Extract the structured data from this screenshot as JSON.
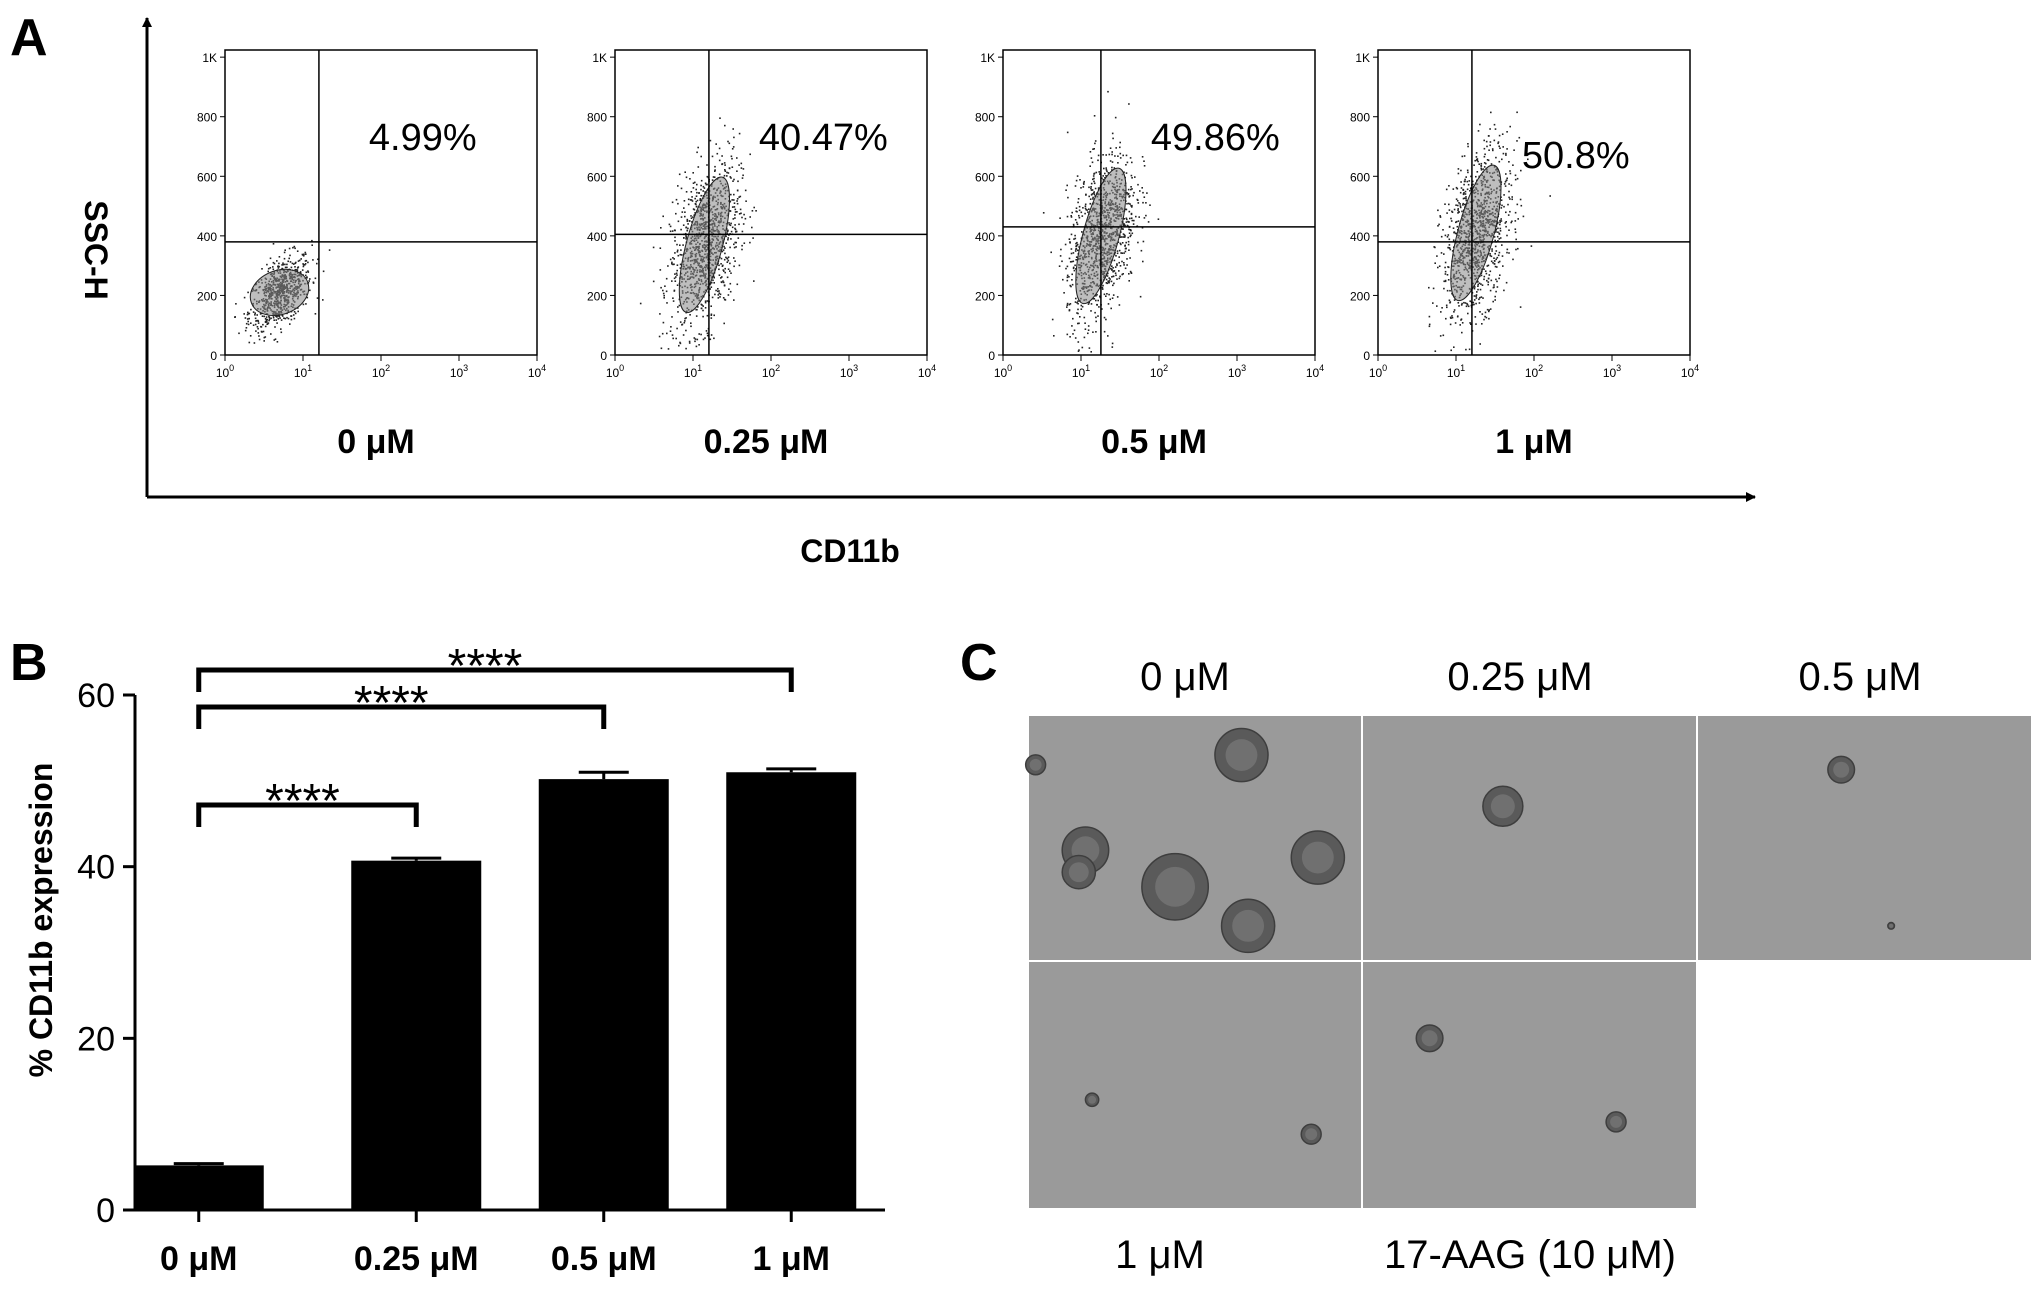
{
  "panels": {
    "a": {
      "letter": "A"
    },
    "b": {
      "letter": "B"
    },
    "c": {
      "letter": "C"
    }
  },
  "chart_data": [
    {
      "type": "scatter",
      "panel": "A",
      "xlabel": "CD11b",
      "ylabel": "SSC-H",
      "x_scale": "log",
      "xlim": [
        1,
        10000
      ],
      "ylim": [
        0,
        1024
      ],
      "x_tick_labels": [
        "10^0",
        "10^1",
        "10^2",
        "10^3",
        "10^4"
      ],
      "y_tick_labels": [
        "0",
        "200",
        "400",
        "600",
        "800",
        "1K"
      ],
      "plots": [
        {
          "condition": "0 μM",
          "percent_label": "4.99%",
          "gate_x": 16,
          "gate_y": 380,
          "population_center": [
            5,
            210
          ],
          "spread": "narrow"
        },
        {
          "condition": "0.25 μM",
          "percent_label": "40.47%",
          "gate_x": 16,
          "gate_y": 405,
          "population_center": [
            14,
            370
          ],
          "spread": "wide"
        },
        {
          "condition": "0.5 μM",
          "percent_label": "49.86%",
          "gate_x": 18,
          "gate_y": 430,
          "population_center": [
            18,
            400
          ],
          "spread": "wide"
        },
        {
          "condition": "1 μM",
          "percent_label": "50.8%",
          "gate_x": 16,
          "gate_y": 380,
          "population_center": [
            18,
            410
          ],
          "spread": "wide"
        }
      ]
    },
    {
      "type": "bar",
      "panel": "B",
      "categories": [
        "0 μM",
        "0.25 μM",
        "0.5 μM",
        "1 μM"
      ],
      "values": [
        5.2,
        40.7,
        50.2,
        51.0
      ],
      "errors": [
        0.2,
        0.3,
        0.8,
        0.4
      ],
      "ylabel": "% CD11b expression",
      "xlabel": "",
      "ylim": [
        0,
        60
      ],
      "y_ticks": [
        0,
        20,
        40,
        60
      ],
      "color": "#000000",
      "significance": [
        {
          "from": 0,
          "to": 1,
          "label": "****"
        },
        {
          "from": 0,
          "to": 2,
          "label": "****"
        },
        {
          "from": 0,
          "to": 3,
          "label": "****"
        }
      ]
    }
  ],
  "micrographs": {
    "top_labels": [
      "0 μM",
      "0.25 μM",
      "0.5 μM"
    ],
    "bottom_labels": [
      "1 μM",
      "17-AAG (10 μM)"
    ],
    "background_color": "#9a9a9a",
    "colonies": [
      [
        [
          0.64,
          0.16,
          0.08
        ],
        [
          0.17,
          0.55,
          0.07
        ],
        [
          0.44,
          0.7,
          0.1
        ],
        [
          0.66,
          0.86,
          0.08
        ],
        [
          0.87,
          0.58,
          0.08
        ],
        [
          0.15,
          0.64,
          0.05
        ],
        [
          0.02,
          0.2,
          0.03
        ]
      ],
      [
        [
          0.42,
          0.37,
          0.06
        ]
      ],
      [
        [
          0.43,
          0.22,
          0.04
        ],
        [
          0.58,
          0.86,
          0.01
        ]
      ],
      [
        [
          0.19,
          0.56,
          0.02
        ],
        [
          0.85,
          0.7,
          0.03
        ]
      ],
      [
        [
          0.2,
          0.31,
          0.04
        ],
        [
          0.76,
          0.65,
          0.03
        ]
      ]
    ]
  }
}
